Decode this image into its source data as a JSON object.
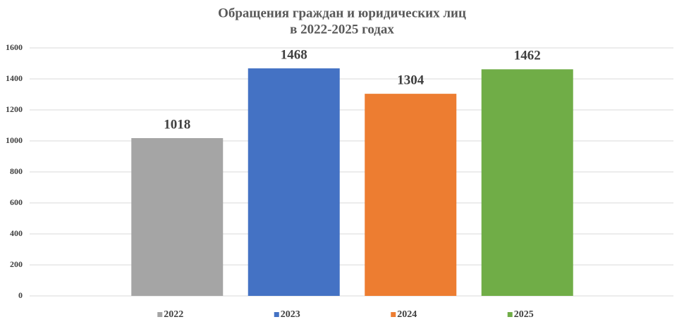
{
  "chart_data": {
    "type": "bar",
    "title": [
      "Обращения граждан и юридических лиц",
      "в 2022-2025 годах"
    ],
    "categories": [
      null
    ],
    "series": [
      {
        "name": "2022",
        "color": "#a5a5a5",
        "values": [
          1018
        ]
      },
      {
        "name": "2023",
        "color": "#4472c4",
        "values": [
          1468
        ]
      },
      {
        "name": "2024",
        "color": "#ed7d31",
        "values": [
          1304
        ]
      },
      {
        "name": "2025",
        "color": "#70ad47",
        "values": [
          1462
        ]
      }
    ],
    "ylim": [
      0,
      1600
    ],
    "yticks": [
      0,
      200,
      400,
      600,
      800,
      1000,
      1200,
      1400,
      1600
    ],
    "grid": true,
    "legend": "bottom",
    "data_labels": true
  }
}
